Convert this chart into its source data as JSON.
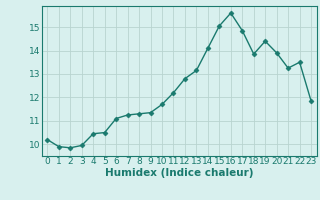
{
  "x": [
    0,
    1,
    2,
    3,
    4,
    5,
    6,
    7,
    8,
    9,
    10,
    11,
    12,
    13,
    14,
    15,
    16,
    17,
    18,
    19,
    20,
    21,
    22,
    23
  ],
  "y": [
    10.2,
    9.9,
    9.85,
    9.95,
    10.45,
    10.5,
    11.1,
    11.25,
    11.3,
    11.35,
    11.7,
    12.2,
    12.8,
    13.15,
    14.1,
    15.05,
    15.6,
    14.85,
    13.85,
    14.4,
    13.9,
    13.25,
    13.5,
    11.85
  ],
  "line_color": "#1a7a6e",
  "marker": "D",
  "markersize": 2.5,
  "linewidth": 1.0,
  "bg_color": "#d8f0ee",
  "grid_color": "#b8d4d0",
  "xlabel": "Humidex (Indice chaleur)",
  "ylim": [
    9.5,
    15.9
  ],
  "xlim": [
    -0.5,
    23.5
  ],
  "yticks": [
    10,
    11,
    12,
    13,
    14,
    15
  ],
  "xticks": [
    0,
    1,
    2,
    3,
    4,
    5,
    6,
    7,
    8,
    9,
    10,
    11,
    12,
    13,
    14,
    15,
    16,
    17,
    18,
    19,
    20,
    21,
    22,
    23
  ],
  "tick_fontsize": 6.5,
  "xlabel_fontsize": 7.5
}
